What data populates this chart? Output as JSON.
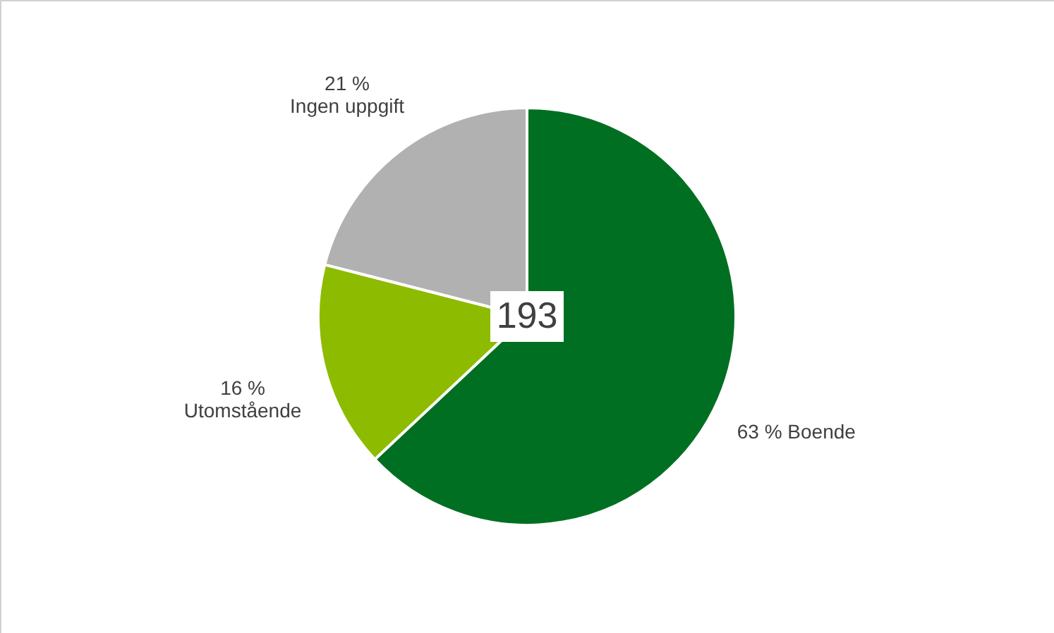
{
  "chart_data": {
    "type": "pie",
    "categories": [
      "Boende",
      "Utomstående",
      "Ingen uppgift"
    ],
    "values": [
      63,
      16,
      21
    ],
    "colors": [
      "#006f22",
      "#8dbb00",
      "#b1b1b1"
    ],
    "value_labels": [
      "63 %",
      "16 %",
      "21 %"
    ],
    "annotations": [
      "193"
    ]
  }
}
